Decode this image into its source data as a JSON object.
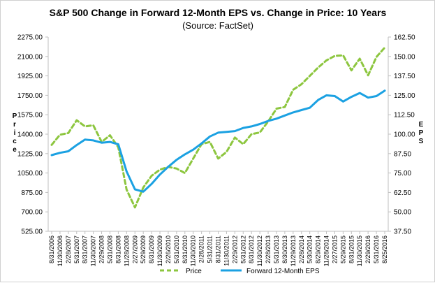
{
  "chart_data": {
    "type": "line",
    "title": "S&P 500 Change in Forward 12-Month EPS vs. Change in Price: 10 Years",
    "subtitle": "(Source: FactSet)",
    "ylabel": "Price",
    "y2label": "EPS",
    "ylim": [
      525,
      2275
    ],
    "y2lim": [
      37.5,
      162.5
    ],
    "yticks": [
      "525.00",
      "700.00",
      "875.00",
      "1050.00",
      "1225.00",
      "1400.00",
      "1575.00",
      "1750.00",
      "1925.00",
      "2100.00",
      "2275.00"
    ],
    "y2ticks": [
      "37.50",
      "50.00",
      "62.50",
      "75.00",
      "87.50",
      "100.00",
      "112.50",
      "125.00",
      "137.50",
      "150.00",
      "162.50"
    ],
    "xticks": [
      "8/31/2006",
      "11/30/2006",
      "2/28/2007",
      "5/31/2007",
      "8/31/2007",
      "11/30/2007",
      "2/29/2008",
      "5/31/2008",
      "8/31/2008",
      "11/28/2008",
      "2/27/2009",
      "5/29/2009",
      "8/31/2009",
      "11/30/2009",
      "2/26/2010",
      "5/31/2010",
      "8/31/2010",
      "11/30/2010",
      "2/28/2011",
      "5/31/2011",
      "8/31/2011",
      "11/30/2011",
      "2/29/2012",
      "5/31/2012",
      "8/31/2012",
      "11/30/2012",
      "2/28/2013",
      "5/31/2013",
      "8/30/2013",
      "11/29/2013",
      "2/28/2014",
      "5/30/2014",
      "8/29/2014",
      "11/28/2014",
      "2/27/2015",
      "5/29/2015",
      "8/31/2015",
      "11/30/2015",
      "2/29/2016",
      "5/31/2016",
      "8/25/2016"
    ],
    "x": [
      "8/31/2006",
      "11/30/2006",
      "2/28/2007",
      "5/31/2007",
      "8/31/2007",
      "11/30/2007",
      "2/29/2008",
      "5/31/2008",
      "8/31/2008",
      "11/28/2008",
      "2/27/2009",
      "5/29/2009",
      "8/31/2009",
      "11/30/2009",
      "2/26/2010",
      "5/31/2010",
      "8/31/2010",
      "11/30/2010",
      "2/28/2011",
      "5/31/2011",
      "8/31/2011",
      "11/30/2011",
      "2/29/2012",
      "5/31/2012",
      "8/31/2012",
      "11/30/2012",
      "2/28/2013",
      "5/31/2013",
      "8/30/2013",
      "11/29/2013",
      "2/28/2014",
      "5/30/2014",
      "8/29/2014",
      "11/28/2014",
      "2/27/2015",
      "5/29/2015",
      "8/31/2015",
      "11/30/2015",
      "2/29/2016",
      "5/31/2016",
      "8/25/2016"
    ],
    "series": [
      {
        "name": "Price",
        "axis": "left",
        "color": "#8dc63f",
        "dash": "dashed",
        "values": [
          1304,
          1395,
          1410,
          1525,
          1470,
          1480,
          1330,
          1390,
          1282,
          900,
          740,
          920,
          1025,
          1080,
          1105,
          1090,
          1050,
          1180,
          1310,
          1330,
          1180,
          1240,
          1370,
          1310,
          1400,
          1415,
          1515,
          1630,
          1645,
          1800,
          1850,
          1925,
          2000,
          2065,
          2105,
          2110,
          1975,
          2080,
          1930,
          2095,
          2180
        ]
      },
      {
        "name": "Forward 12-Month EPS",
        "axis": "right",
        "color": "#1ba1e2",
        "dash": "solid",
        "values": [
          86.5,
          88,
          89,
          93,
          96.5,
          96,
          94.5,
          95,
          93.5,
          76,
          64.5,
          63,
          68,
          74,
          79,
          83.5,
          87,
          90,
          94,
          98.5,
          101,
          101.5,
          102,
          104,
          105,
          106.5,
          108.5,
          110,
          112,
          114,
          115.5,
          117,
          122,
          125,
          124.5,
          121,
          124,
          126.5,
          123.5,
          124.5,
          128
        ]
      }
    ],
    "legend_position": "bottom",
    "grid": false
  }
}
